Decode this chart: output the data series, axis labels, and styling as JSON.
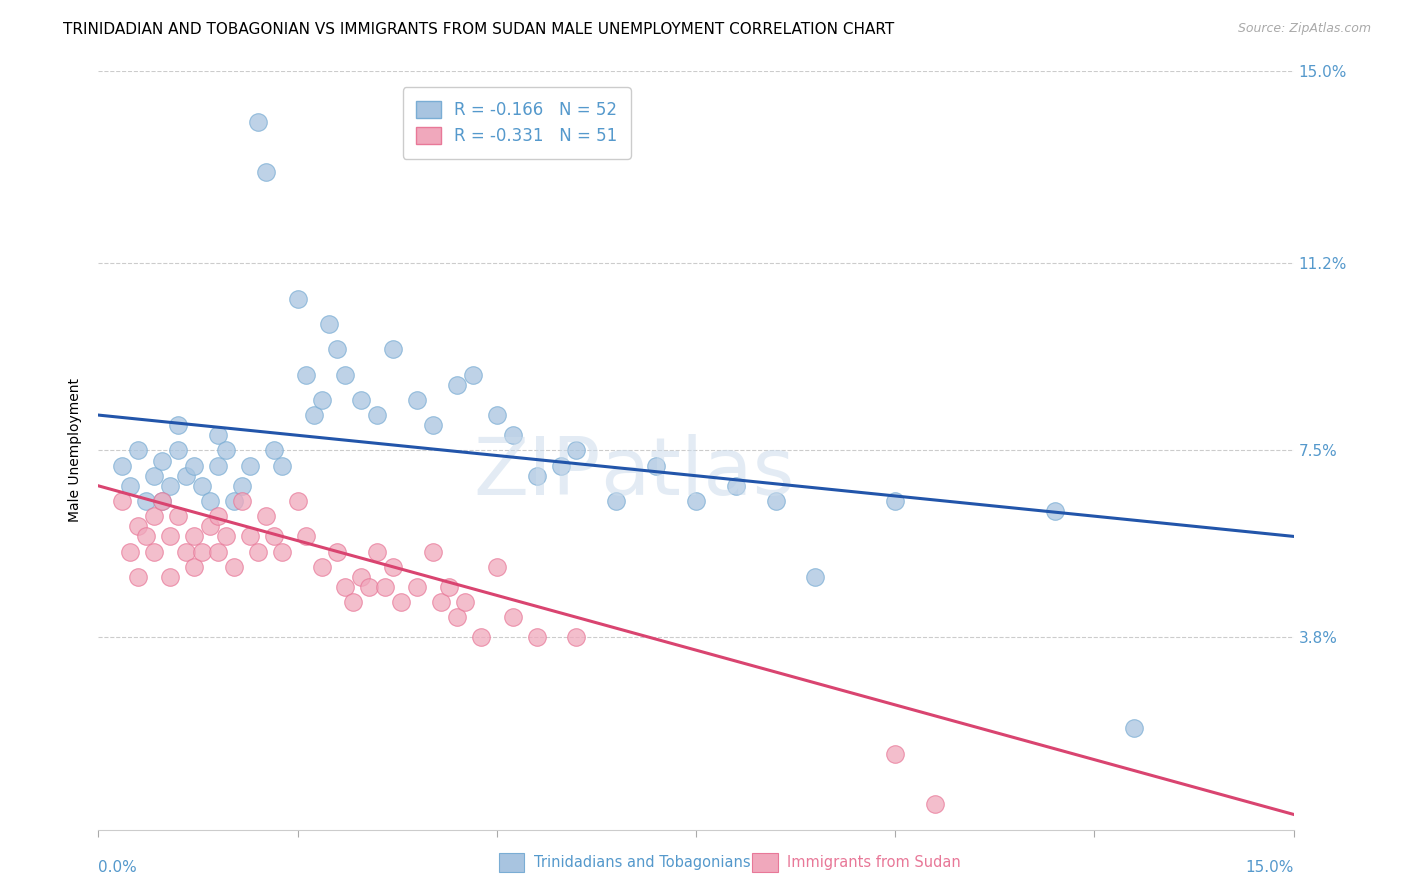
{
  "title": "TRINIDADIAN AND TOBAGONIAN VS IMMIGRANTS FROM SUDAN MALE UNEMPLOYMENT CORRELATION CHART",
  "source": "Source: ZipAtlas.com",
  "ylabel": "Male Unemployment",
  "yticks": [
    0.0,
    0.038,
    0.075,
    0.112,
    0.15
  ],
  "ytick_labels": [
    "",
    "3.8%",
    "7.5%",
    "11.2%",
    "15.0%"
  ],
  "xlim": [
    0.0,
    0.15
  ],
  "ylim": [
    0.0,
    0.15
  ],
  "blue_scatter_x": [
    0.003,
    0.004,
    0.005,
    0.006,
    0.007,
    0.008,
    0.008,
    0.009,
    0.01,
    0.01,
    0.011,
    0.012,
    0.013,
    0.014,
    0.015,
    0.015,
    0.016,
    0.017,
    0.018,
    0.019,
    0.02,
    0.021,
    0.022,
    0.023,
    0.025,
    0.026,
    0.027,
    0.028,
    0.029,
    0.03,
    0.031,
    0.033,
    0.035,
    0.037,
    0.04,
    0.042,
    0.045,
    0.047,
    0.05,
    0.052,
    0.055,
    0.058,
    0.06,
    0.065,
    0.07,
    0.075,
    0.08,
    0.085,
    0.09,
    0.1,
    0.12,
    0.13
  ],
  "blue_scatter_y": [
    0.072,
    0.068,
    0.075,
    0.065,
    0.07,
    0.073,
    0.065,
    0.068,
    0.075,
    0.08,
    0.07,
    0.072,
    0.068,
    0.065,
    0.078,
    0.072,
    0.075,
    0.065,
    0.068,
    0.072,
    0.14,
    0.13,
    0.075,
    0.072,
    0.105,
    0.09,
    0.082,
    0.085,
    0.1,
    0.095,
    0.09,
    0.085,
    0.082,
    0.095,
    0.085,
    0.08,
    0.088,
    0.09,
    0.082,
    0.078,
    0.07,
    0.072,
    0.075,
    0.065,
    0.072,
    0.065,
    0.068,
    0.065,
    0.05,
    0.065,
    0.063,
    0.02
  ],
  "pink_scatter_x": [
    0.003,
    0.004,
    0.005,
    0.005,
    0.006,
    0.007,
    0.007,
    0.008,
    0.009,
    0.009,
    0.01,
    0.011,
    0.012,
    0.012,
    0.013,
    0.014,
    0.015,
    0.015,
    0.016,
    0.017,
    0.018,
    0.019,
    0.02,
    0.021,
    0.022,
    0.023,
    0.025,
    0.026,
    0.028,
    0.03,
    0.031,
    0.032,
    0.033,
    0.034,
    0.035,
    0.036,
    0.037,
    0.038,
    0.04,
    0.042,
    0.043,
    0.044,
    0.045,
    0.046,
    0.048,
    0.05,
    0.052,
    0.055,
    0.06,
    0.1,
    0.105
  ],
  "pink_scatter_y": [
    0.065,
    0.055,
    0.06,
    0.05,
    0.058,
    0.062,
    0.055,
    0.065,
    0.058,
    0.05,
    0.062,
    0.055,
    0.058,
    0.052,
    0.055,
    0.06,
    0.062,
    0.055,
    0.058,
    0.052,
    0.065,
    0.058,
    0.055,
    0.062,
    0.058,
    0.055,
    0.065,
    0.058,
    0.052,
    0.055,
    0.048,
    0.045,
    0.05,
    0.048,
    0.055,
    0.048,
    0.052,
    0.045,
    0.048,
    0.055,
    0.045,
    0.048,
    0.042,
    0.045,
    0.038,
    0.052,
    0.042,
    0.038,
    0.038,
    0.015,
    0.005
  ],
  "blue_line_x": [
    0.0,
    0.15
  ],
  "blue_line_y": [
    0.082,
    0.058
  ],
  "pink_line_x": [
    0.0,
    0.15
  ],
  "pink_line_y": [
    0.068,
    0.003
  ],
  "blue_color": "#a8c4e0",
  "pink_color": "#f0a8bc",
  "blue_edge_color": "#7aadd4",
  "pink_edge_color": "#e87898",
  "blue_line_color": "#2255aa",
  "pink_line_color": "#d94470",
  "grid_color": "#cccccc",
  "tick_color": "#5599cc",
  "legend_line1": "R = -0.166   N = 52",
  "legend_line2": "R = -0.331   N = 51",
  "bottom_label1": "Trinidadians and Tobagonians",
  "bottom_label2": "Immigrants from Sudan",
  "title_fontsize": 11,
  "axis_label_fontsize": 10,
  "tick_fontsize": 11,
  "source_text": "Source: ZipAtlas.com"
}
